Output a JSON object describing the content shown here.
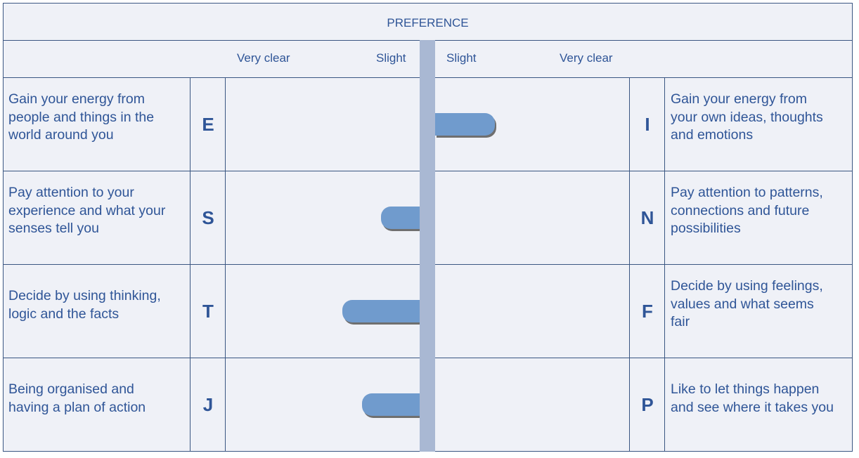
{
  "header": {
    "title": "PREFERENCE",
    "scale_labels": [
      "Very clear",
      "Slight",
      "Slight",
      "Very clear"
    ]
  },
  "colors": {
    "text": "#2f5597",
    "bar": "#709bcd",
    "axis": "#a9b8d3",
    "background": "#eff1f7",
    "grid": "#3a5682"
  },
  "rows": [
    {
      "left_letter": "E",
      "left_text": "Gain your energy from\npeople and things in the\nworld around you",
      "right_letter": "I",
      "right_text": "Gain your energy from\nyour own ideas, thoughts\nand emotions"
    },
    {
      "left_letter": "S",
      "left_text": "Pay attention to your\nexperience and what your\nsenses tell you",
      "right_letter": "N",
      "right_text": "Pay attention to patterns,\nconnections and future\npossibilities"
    },
    {
      "left_letter": "T",
      "left_text": "Decide by using thinking,\nlogic and the facts",
      "right_letter": "F",
      "right_text": "Decide by using feelings,\nvalues and what seems\nfair"
    },
    {
      "left_letter": "J",
      "left_text": "Being organised and\nhaving a plan of action",
      "right_letter": "P",
      "right_text": "Like to let things happen\nand see where it takes you"
    }
  ],
  "chart_data": {
    "type": "bar",
    "orientation": "horizontal-diverging",
    "categories": [
      "E-I",
      "S-N",
      "T-F",
      "J-P"
    ],
    "values": [
      0.31,
      -0.2,
      -0.4,
      -0.3
    ],
    "xlim": [
      -1,
      1
    ]
  }
}
